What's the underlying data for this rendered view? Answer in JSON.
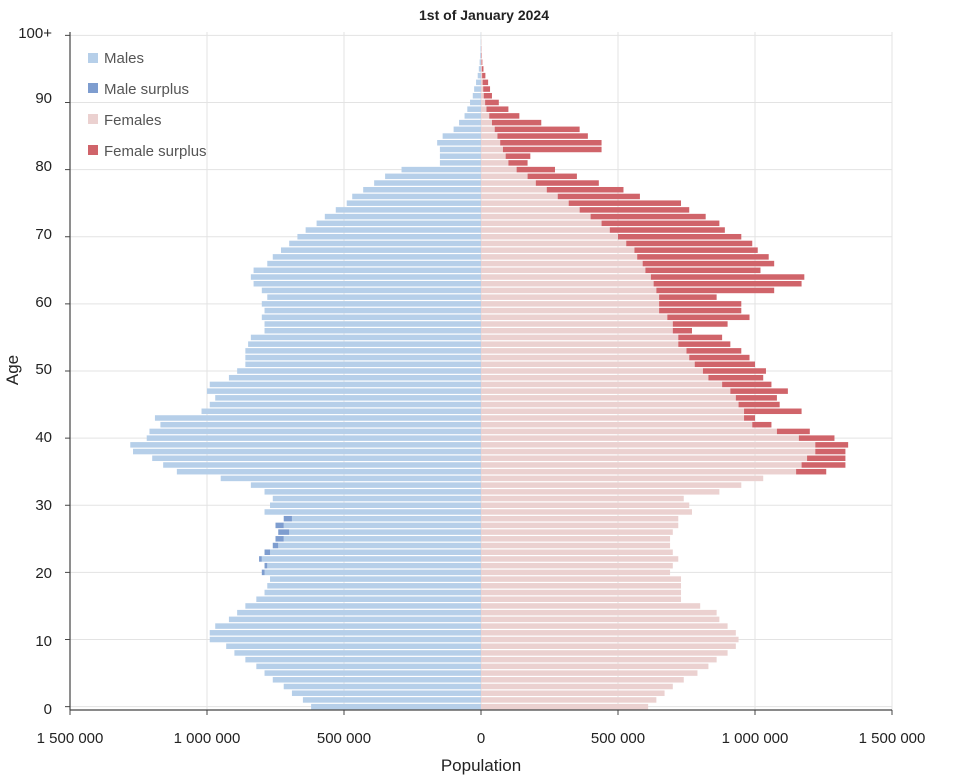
{
  "chart_data": {
    "type": "bar",
    "orientation": "horizontal-population-pyramid",
    "title": "1st of January 2024",
    "xlabel": "Population",
    "ylabel": "Age",
    "xlim": [
      -1500000,
      1500000
    ],
    "ylim": [
      0,
      100
    ],
    "grid": true,
    "legend_position": "top-left",
    "x_tick_labels": [
      "1 500 000",
      "1 000 000",
      "500 000",
      "0",
      "500 000",
      "1 000 000",
      "1 500 000"
    ],
    "y_tick_labels": [
      "0",
      "10",
      "20",
      "30",
      "40",
      "50",
      "60",
      "70",
      "80",
      "90",
      "100+"
    ],
    "legend": [
      {
        "label": "Males",
        "color": "#b6cfe9"
      },
      {
        "label": "Male surplus",
        "color": "#7e9dcf"
      },
      {
        "label": "Females",
        "color": "#ebd1d0"
      },
      {
        "label": "Female surplus",
        "color": "#d0646a"
      }
    ],
    "ages": [
      0,
      1,
      2,
      3,
      4,
      5,
      6,
      7,
      8,
      9,
      10,
      11,
      12,
      13,
      14,
      15,
      16,
      17,
      18,
      19,
      20,
      21,
      22,
      23,
      24,
      25,
      26,
      27,
      28,
      29,
      30,
      31,
      32,
      33,
      34,
      35,
      36,
      37,
      38,
      39,
      40,
      41,
      42,
      43,
      44,
      45,
      46,
      47,
      48,
      49,
      50,
      51,
      52,
      53,
      54,
      55,
      56,
      57,
      58,
      59,
      60,
      61,
      62,
      63,
      64,
      65,
      66,
      67,
      68,
      69,
      70,
      71,
      72,
      73,
      74,
      75,
      76,
      77,
      78,
      79,
      80,
      81,
      82,
      83,
      84,
      85,
      86,
      87,
      88,
      89,
      90,
      91,
      92,
      93,
      94,
      95,
      96,
      97,
      98,
      99,
      100
    ],
    "series": [
      {
        "name": "Males",
        "values": [
          620000,
          650000,
          690000,
          720000,
          760000,
          790000,
          820000,
          860000,
          900000,
          930000,
          990000,
          990000,
          970000,
          920000,
          890000,
          860000,
          820000,
          790000,
          780000,
          770000,
          790000,
          780000,
          800000,
          770000,
          740000,
          720000,
          700000,
          720000,
          690000,
          790000,
          770000,
          760000,
          790000,
          840000,
          950000,
          1110000,
          1160000,
          1200000,
          1270000,
          1280000,
          1220000,
          1210000,
          1170000,
          1190000,
          1020000,
          990000,
          970000,
          1000000,
          990000,
          920000,
          890000,
          860000,
          860000,
          860000,
          850000,
          840000,
          790000,
          790000,
          800000,
          790000,
          800000,
          780000,
          800000,
          830000,
          840000,
          830000,
          780000,
          760000,
          730000,
          700000,
          670000,
          640000,
          600000,
          570000,
          530000,
          490000,
          470000,
          430000,
          390000,
          350000,
          290000,
          150000,
          150000,
          150000,
          160000,
          140000,
          100000,
          80000,
          60000,
          50000,
          40000,
          30000,
          25000,
          18000,
          12000,
          8000,
          5000,
          3000,
          2000,
          1000,
          500
        ]
      },
      {
        "name": "Male surplus",
        "values": [
          0,
          0,
          0,
          0,
          0,
          0,
          0,
          0,
          0,
          0,
          0,
          0,
          0,
          0,
          0,
          0,
          0,
          0,
          0,
          0,
          10000,
          10000,
          10000,
          20000,
          20000,
          30000,
          40000,
          30000,
          30000,
          0,
          0,
          0,
          0,
          0,
          0,
          0,
          0,
          0,
          0,
          0,
          0,
          0,
          0,
          0,
          0,
          0,
          0,
          0,
          0,
          0,
          0,
          0,
          0,
          0,
          0,
          0,
          0,
          0,
          0,
          0,
          0,
          0,
          0,
          0,
          0,
          0,
          0,
          0,
          0,
          0,
          0,
          0,
          0,
          0,
          0,
          0,
          0,
          0,
          0,
          0,
          0,
          0,
          0,
          0,
          0,
          0,
          0,
          0,
          0,
          0,
          0,
          0,
          0,
          0,
          0,
          0,
          0,
          0,
          0,
          0,
          0
        ]
      },
      {
        "name": "Females",
        "values": [
          610000,
          640000,
          670000,
          700000,
          740000,
          790000,
          830000,
          860000,
          900000,
          930000,
          940000,
          930000,
          900000,
          870000,
          860000,
          800000,
          730000,
          730000,
          730000,
          730000,
          690000,
          700000,
          720000,
          700000,
          690000,
          690000,
          700000,
          720000,
          720000,
          770000,
          760000,
          740000,
          870000,
          950000,
          1030000,
          1150000,
          1170000,
          1190000,
          1220000,
          1220000,
          1160000,
          1080000,
          990000,
          960000,
          960000,
          940000,
          930000,
          910000,
          880000,
          830000,
          810000,
          780000,
          760000,
          750000,
          720000,
          720000,
          700000,
          700000,
          680000,
          650000,
          650000,
          650000,
          640000,
          630000,
          620000,
          600000,
          590000,
          570000,
          560000,
          530000,
          500000,
          470000,
          440000,
          400000,
          360000,
          320000,
          280000,
          240000,
          200000,
          170000,
          130000,
          100000,
          90000,
          80000,
          70000,
          60000,
          50000,
          40000,
          30000,
          20000,
          15000,
          10000,
          8000,
          6000,
          4000,
          3000,
          2000,
          1000,
          500,
          300,
          100
        ]
      },
      {
        "name": "Female surplus",
        "values": [
          0,
          0,
          0,
          0,
          0,
          0,
          0,
          0,
          0,
          0,
          0,
          0,
          0,
          0,
          0,
          0,
          0,
          0,
          0,
          0,
          0,
          0,
          0,
          0,
          0,
          0,
          0,
          0,
          0,
          0,
          0,
          0,
          0,
          0,
          0,
          110000,
          160000,
          140000,
          110000,
          120000,
          130000,
          120000,
          70000,
          40000,
          210000,
          150000,
          150000,
          210000,
          180000,
          200000,
          230000,
          220000,
          220000,
          200000,
          190000,
          160000,
          70000,
          200000,
          300000,
          300000,
          300000,
          210000,
          430000,
          540000,
          560000,
          420000,
          480000,
          480000,
          450000,
          460000,
          450000,
          420000,
          430000,
          420000,
          400000,
          410000,
          300000,
          280000,
          230000,
          180000,
          140000,
          70000,
          90000,
          360000,
          370000,
          330000,
          310000,
          180000,
          110000,
          80000,
          50000,
          30000,
          25000,
          20000,
          12000,
          6000,
          3000,
          1500,
          800,
          300,
          0
        ]
      }
    ]
  }
}
